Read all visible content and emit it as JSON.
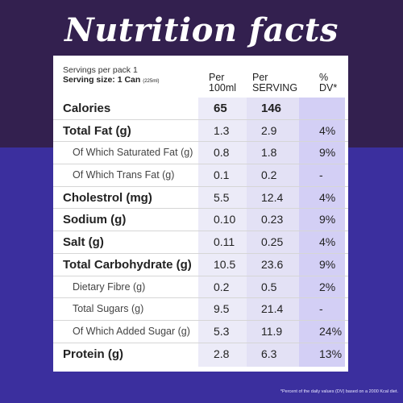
{
  "title": "Nutrition facts",
  "servings_per_pack": "Servings per pack 1",
  "serving_size": "Serving size: 1 Can",
  "serving_size_ml": "(225ml)",
  "columns": {
    "per100": "Per\n100ml",
    "serving": "Per\nSERVING",
    "dv": "%\nDV*"
  },
  "rows": [
    {
      "label": "Calories",
      "per100": "65",
      "serving": "146",
      "dv": ""
    },
    {
      "label": "Total Fat (g)",
      "per100": "1.3",
      "serving": "2.9",
      "dv": "4%"
    },
    {
      "label": "Of Which Saturated Fat (g)",
      "per100": "0.8",
      "serving": "1.8",
      "dv": "9%"
    },
    {
      "label": "Of Which Trans Fat (g)",
      "per100": "0.1",
      "serving": "0.2",
      "dv": "-"
    },
    {
      "label": "Cholestrol (mg)",
      "per100": "5.5",
      "serving": "12.4",
      "dv": "4%"
    },
    {
      "label": "Sodium (g)",
      "per100": "0.10",
      "serving": "0.23",
      "dv": "9%"
    },
    {
      "label": "Salt (g)",
      "per100": "0.11",
      "serving": "0.25",
      "dv": "4%"
    },
    {
      "label": "Total Carbohydrate (g)",
      "per100": "10.5",
      "serving": "23.6",
      "dv": "9%"
    },
    {
      "label": "Dietary Fibre (g)",
      "per100": "0.2",
      "serving": "0.5",
      "dv": "2%"
    },
    {
      "label": "Total Sugars (g)",
      "per100": "9.5",
      "serving": "21.4",
      "dv": "-"
    },
    {
      "label": "Of Which Added Sugar (g)",
      "per100": "5.3",
      "serving": "11.9",
      "dv": "24%"
    },
    {
      "label": "Protein (g)",
      "per100": "2.8",
      "serving": "6.3",
      "dv": "13%"
    }
  ],
  "footnote": "*Percent of the daily values (DV) based on a 2000 Kcal diet.",
  "colors": {
    "top_bg": "#33204f",
    "bottom_bg": "#3b2f9e",
    "dv_band": "#d3cff5"
  }
}
